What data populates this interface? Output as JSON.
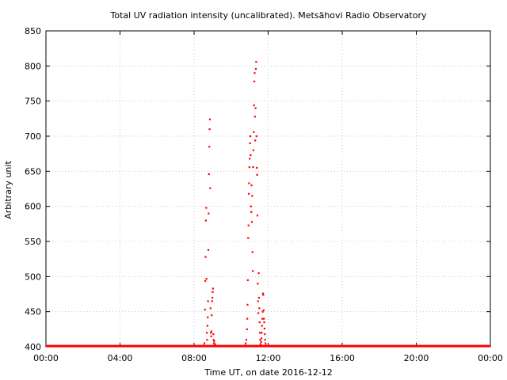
{
  "chart_data": {
    "type": "scatter",
    "title": "Total UV radiation intensity (uncalibrated). Metsähovi Radio Observatory",
    "xlabel": "Time UT, on date 2016-12-12",
    "ylabel": "Arbitrary unit",
    "xlim": [
      "00:00",
      "24:00"
    ],
    "ylim": [
      400,
      850
    ],
    "x_ticks": [
      "00:00",
      "04:00",
      "08:00",
      "12:00",
      "16:00",
      "20:00",
      "00:00"
    ],
    "y_ticks": [
      400,
      450,
      500,
      550,
      600,
      650,
      700,
      750,
      800,
      850
    ],
    "grid": true,
    "marker_color": "#ff0000",
    "baseline": {
      "x_range": [
        "00:00",
        "24:00"
      ],
      "y": 401
    },
    "series": [
      {
        "points": [
          {
            "x": "08:31",
            "y": 402
          },
          {
            "x": "08:33",
            "y": 405
          },
          {
            "x": "08:35",
            "y": 453
          },
          {
            "x": "08:36",
            "y": 494
          },
          {
            "x": "08:37",
            "y": 528
          },
          {
            "x": "08:38",
            "y": 580
          },
          {
            "x": "08:39",
            "y": 598
          },
          {
            "x": "08:40",
            "y": 497
          },
          {
            "x": "08:41",
            "y": 420
          },
          {
            "x": "08:42",
            "y": 410
          },
          {
            "x": "08:43",
            "y": 430
          },
          {
            "x": "08:44",
            "y": 442
          },
          {
            "x": "08:45",
            "y": 465
          },
          {
            "x": "08:46",
            "y": 538
          },
          {
            "x": "08:47",
            "y": 590
          },
          {
            "x": "08:48",
            "y": 646
          },
          {
            "x": "08:49",
            "y": 685
          },
          {
            "x": "08:50",
            "y": 710
          },
          {
            "x": "08:51",
            "y": 724
          },
          {
            "x": "08:52",
            "y": 626
          },
          {
            "x": "08:53",
            "y": 455
          },
          {
            "x": "08:54",
            "y": 420
          },
          {
            "x": "08:55",
            "y": 415
          },
          {
            "x": "08:56",
            "y": 422
          },
          {
            "x": "08:57",
            "y": 445
          },
          {
            "x": "08:58",
            "y": 465
          },
          {
            "x": "08:59",
            "y": 470
          },
          {
            "x": "09:00",
            "y": 478
          },
          {
            "x": "09:01",
            "y": 483
          },
          {
            "x": "09:02",
            "y": 418
          },
          {
            "x": "09:03",
            "y": 410
          },
          {
            "x": "09:04",
            "y": 405
          },
          {
            "x": "09:05",
            "y": 408
          },
          {
            "x": "09:07",
            "y": 404
          },
          {
            "x": "09:09",
            "y": 402
          },
          {
            "x": "10:45",
            "y": 402
          },
          {
            "x": "10:47",
            "y": 405
          },
          {
            "x": "10:49",
            "y": 410
          },
          {
            "x": "10:51",
            "y": 425
          },
          {
            "x": "10:52",
            "y": 440
          },
          {
            "x": "10:53",
            "y": 460
          },
          {
            "x": "10:54",
            "y": 495
          },
          {
            "x": "10:55",
            "y": 555
          },
          {
            "x": "10:56",
            "y": 573
          },
          {
            "x": "10:57",
            "y": 618
          },
          {
            "x": "10:58",
            "y": 633
          },
          {
            "x": "10:59",
            "y": 656
          },
          {
            "x": "11:00",
            "y": 668
          },
          {
            "x": "11:01",
            "y": 690
          },
          {
            "x": "11:02",
            "y": 700
          },
          {
            "x": "11:03",
            "y": 673
          },
          {
            "x": "11:04",
            "y": 600
          },
          {
            "x": "11:05",
            "y": 592
          },
          {
            "x": "11:06",
            "y": 630
          },
          {
            "x": "11:07",
            "y": 578
          },
          {
            "x": "11:08",
            "y": 615
          },
          {
            "x": "11:09",
            "y": 535
          },
          {
            "x": "11:10",
            "y": 508
          },
          {
            "x": "11:11",
            "y": 656
          },
          {
            "x": "11:12",
            "y": 680
          },
          {
            "x": "11:13",
            "y": 706
          },
          {
            "x": "11:14",
            "y": 744
          },
          {
            "x": "11:15",
            "y": 778
          },
          {
            "x": "11:16",
            "y": 790
          },
          {
            "x": "11:17",
            "y": 728
          },
          {
            "x": "11:18",
            "y": 694
          },
          {
            "x": "11:19",
            "y": 740
          },
          {
            "x": "11:20",
            "y": 796
          },
          {
            "x": "11:21",
            "y": 806
          },
          {
            "x": "11:22",
            "y": 700
          },
          {
            "x": "11:23",
            "y": 655
          },
          {
            "x": "11:24",
            "y": 645
          },
          {
            "x": "11:25",
            "y": 587
          },
          {
            "x": "11:26",
            "y": 490
          },
          {
            "x": "11:27",
            "y": 465
          },
          {
            "x": "11:28",
            "y": 448
          },
          {
            "x": "11:29",
            "y": 505
          },
          {
            "x": "11:30",
            "y": 470
          },
          {
            "x": "11:31",
            "y": 455
          },
          {
            "x": "11:32",
            "y": 435
          },
          {
            "x": "11:33",
            "y": 420
          },
          {
            "x": "11:34",
            "y": 410
          },
          {
            "x": "11:35",
            "y": 404
          },
          {
            "x": "11:36",
            "y": 402
          },
          {
            "x": "11:37",
            "y": 407
          },
          {
            "x": "11:38",
            "y": 412
          },
          {
            "x": "11:39",
            "y": 420
          },
          {
            "x": "11:40",
            "y": 430
          },
          {
            "x": "11:41",
            "y": 440
          },
          {
            "x": "11:42",
            "y": 450
          },
          {
            "x": "11:43",
            "y": 476
          },
          {
            "x": "11:44",
            "y": 474
          },
          {
            "x": "11:45",
            "y": 452
          },
          {
            "x": "11:46",
            "y": 440
          },
          {
            "x": "11:47",
            "y": 435
          },
          {
            "x": "11:48",
            "y": 426
          },
          {
            "x": "11:49",
            "y": 418
          },
          {
            "x": "11:50",
            "y": 410
          },
          {
            "x": "11:51",
            "y": 405
          },
          {
            "x": "11:53",
            "y": 402
          }
        ]
      }
    ]
  }
}
